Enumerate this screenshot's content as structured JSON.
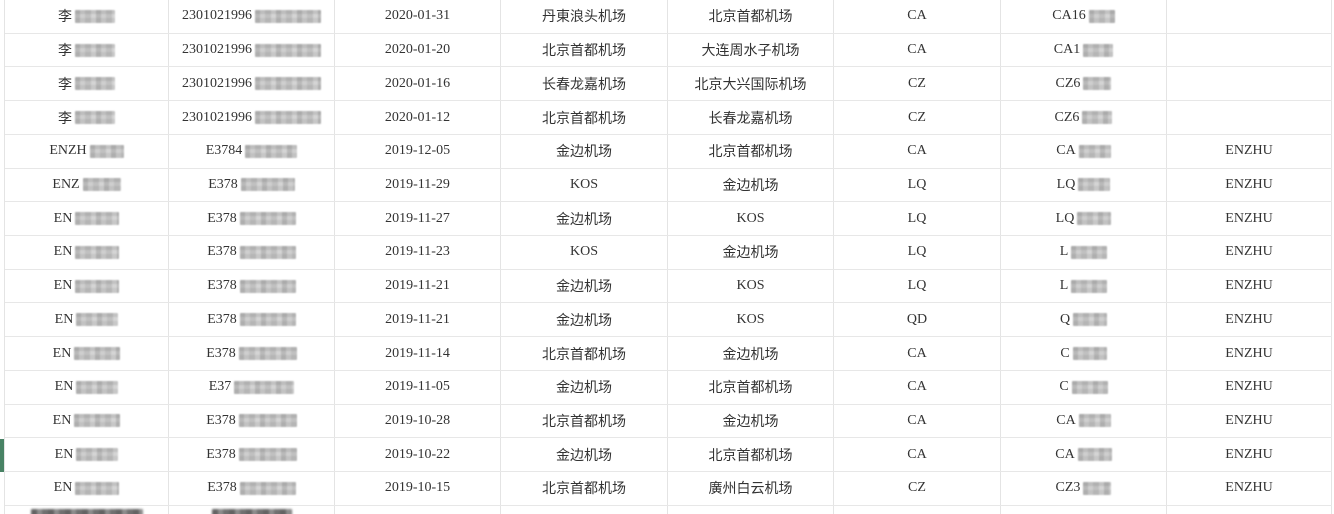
{
  "page": {
    "background": "#ffffff"
  },
  "table": {
    "border_color": "#e4e4e4",
    "text_color": "#333333",
    "selection_green": "#488264",
    "columns": [
      "name",
      "id_number",
      "date",
      "departure_airport",
      "arrival_airport",
      "airline_code",
      "flight_number",
      "pinyin_name"
    ],
    "rows": [
      {
        "name": "李",
        "name_blur_w": 40,
        "id": "2301021996",
        "id_blur_w": 66,
        "date": "2020-01-31",
        "departure": "丹東浪头机场",
        "arrival": "北京首都机场",
        "airline": "CA",
        "flight": "CA16",
        "flight_blur_w": 26,
        "pinyin": "",
        "selected": false
      },
      {
        "name": "李",
        "name_blur_w": 40,
        "id": "2301021996",
        "id_blur_w": 66,
        "date": "2020-01-20",
        "departure": "北京首都机场",
        "arrival": "大连周水子机场",
        "airline": "CA",
        "flight": "CA1",
        "flight_blur_w": 30,
        "pinyin": "",
        "selected": false
      },
      {
        "name": "李",
        "name_blur_w": 40,
        "id": "2301021996",
        "id_blur_w": 66,
        "date": "2020-01-16",
        "departure": "长春龙嘉机场",
        "arrival": "北京大兴国际机场",
        "airline": "CZ",
        "flight": "CZ6",
        "flight_blur_w": 28,
        "pinyin": "",
        "selected": false
      },
      {
        "name": "李",
        "name_blur_w": 40,
        "id": "2301021996",
        "id_blur_w": 66,
        "date": "2020-01-12",
        "departure": "北京首都机场",
        "arrival": "长春龙嘉机场",
        "airline": "CZ",
        "flight": "CZ6",
        "flight_blur_w": 30,
        "pinyin": "",
        "selected": false
      },
      {
        "name": "ENZH",
        "name_blur_w": 34,
        "id": "E3784",
        "id_blur_w": 52,
        "date": "2019-12-05",
        "departure": "金边机场",
        "arrival": "北京首都机场",
        "airline": "CA",
        "flight": "CA",
        "flight_blur_w": 32,
        "pinyin": "ENZHU",
        "selected": false
      },
      {
        "name": "ENZ",
        "name_blur_w": 38,
        "id": "E378",
        "id_blur_w": 54,
        "date": "2019-11-29",
        "departure": "KOS",
        "arrival": "金边机场",
        "airline": "LQ",
        "flight": "LQ",
        "flight_blur_w": 32,
        "pinyin": "ENZHU",
        "selected": false
      },
      {
        "name": "EN",
        "name_blur_w": 44,
        "id": "E378",
        "id_blur_w": 56,
        "date": "2019-11-27",
        "departure": "金边机场",
        "arrival": "KOS",
        "airline": "LQ",
        "flight": "LQ",
        "flight_blur_w": 34,
        "pinyin": "ENZHU",
        "selected": false
      },
      {
        "name": "EN",
        "name_blur_w": 44,
        "id": "E378",
        "id_blur_w": 56,
        "date": "2019-11-23",
        "departure": "KOS",
        "arrival": "金边机场",
        "airline": "LQ",
        "flight": "L",
        "flight_blur_w": 36,
        "pinyin": "ENZHU",
        "selected": false
      },
      {
        "name": "EN",
        "name_blur_w": 44,
        "id": "E378",
        "id_blur_w": 56,
        "date": "2019-11-21",
        "departure": "金边机场",
        "arrival": "KOS",
        "airline": "LQ",
        "flight": "L",
        "flight_blur_w": 36,
        "pinyin": "ENZHU",
        "selected": false
      },
      {
        "name": "EN",
        "name_blur_w": 42,
        "id": "E378",
        "id_blur_w": 56,
        "date": "2019-11-21",
        "departure": "金边机场",
        "arrival": "KOS",
        "airline": "QD",
        "flight": "Q",
        "flight_blur_w": 34,
        "pinyin": "ENZHU",
        "selected": false
      },
      {
        "name": "EN",
        "name_blur_w": 46,
        "id": "E378",
        "id_blur_w": 58,
        "date": "2019-11-14",
        "departure": "北京首都机场",
        "arrival": "金边机场",
        "airline": "CA",
        "flight": "C",
        "flight_blur_w": 34,
        "pinyin": "ENZHU",
        "selected": false
      },
      {
        "name": "EN",
        "name_blur_w": 42,
        "id": "E37",
        "id_blur_w": 60,
        "date": "2019-11-05",
        "departure": "金边机场",
        "arrival": "北京首都机场",
        "airline": "CA",
        "flight": "C",
        "flight_blur_w": 36,
        "pinyin": "ENZHU",
        "selected": false
      },
      {
        "name": "EN",
        "name_blur_w": 46,
        "id": "E378",
        "id_blur_w": 58,
        "date": "2019-10-28",
        "departure": "北京首都机场",
        "arrival": "金边机场",
        "airline": "CA",
        "flight": "CA",
        "flight_blur_w": 32,
        "pinyin": "ENZHU",
        "selected": false
      },
      {
        "name": "EN",
        "name_blur_w": 42,
        "id": "E378",
        "id_blur_w": 58,
        "date": "2019-10-22",
        "departure": "金边机场",
        "arrival": "北京首都机场",
        "airline": "CA",
        "flight": "CA",
        "flight_blur_w": 34,
        "pinyin": "ENZHU",
        "selected": true
      },
      {
        "name": "EN",
        "name_blur_w": 44,
        "id": "E378",
        "id_blur_w": 56,
        "date": "2019-10-15",
        "departure": "北京首都机场",
        "arrival": "廣州白云机场",
        "airline": "CZ",
        "flight": "CZ3",
        "flight_blur_w": 28,
        "pinyin": "ENZHU",
        "selected": false
      }
    ],
    "partial_row": {
      "name_blur_w": 112,
      "id_blur_w": 80
    }
  }
}
